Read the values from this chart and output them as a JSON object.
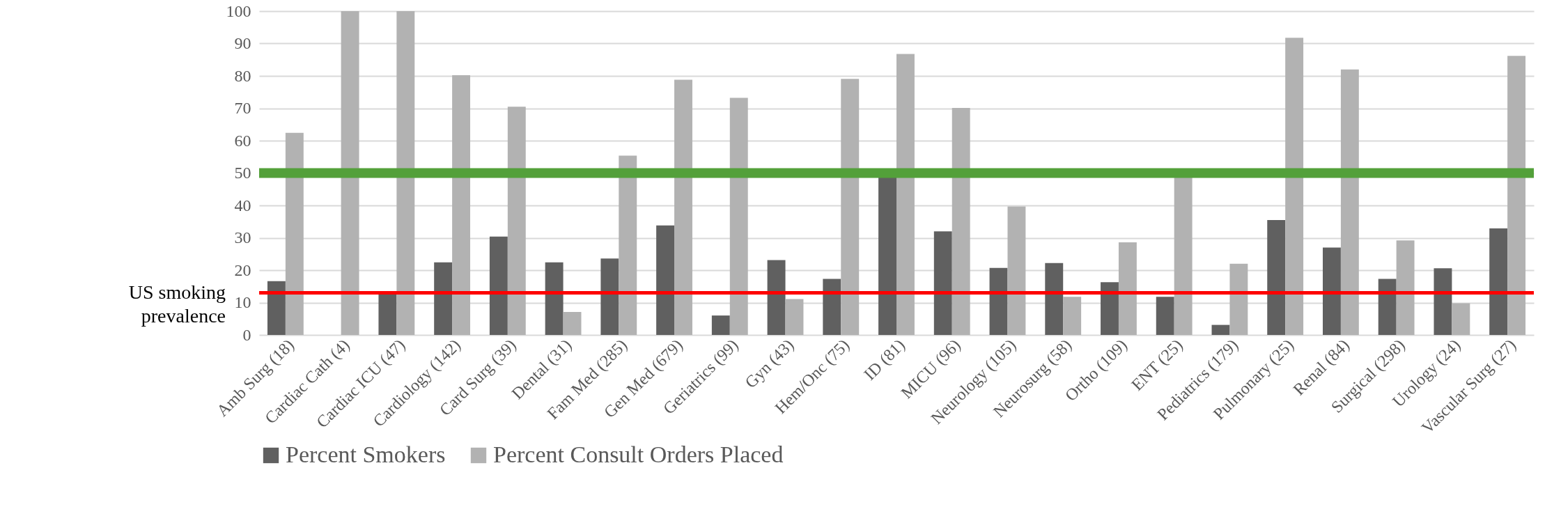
{
  "chart_data": {
    "type": "bar",
    "categories": [
      "Amb Surg (18)",
      "Cardiac Cath (4)",
      "Cardiac ICU (47)",
      "Cardiology (142)",
      "Card Surg (39)",
      "Dental (31)",
      "Fam Med (285)",
      "Gen Med (679)",
      "Geriatrics (99)",
      "Gyn (43)",
      "Hem/Onc (75)",
      "ID (81)",
      "MICU (96)",
      "Neurology (105)",
      "Neurosurg (58)",
      "Ortho (109)",
      "ENT (25)",
      "Pediatrics (179)",
      "Pulmonary (25)",
      "Renal (84)",
      "Surgical (298)",
      "Urology (24)",
      "Vascular Surg (27)"
    ],
    "series": [
      {
        "name": "Percent Smokers",
        "color": "#606060",
        "values": [
          16.6,
          0,
          13.2,
          22.4,
          30.4,
          22.4,
          23.6,
          33.8,
          6.0,
          23.1,
          17.3,
          49,
          32.0,
          20.7,
          22.2,
          16.3,
          11.8,
          3.1,
          35.5,
          27.0,
          17.3,
          20.6,
          32.9
        ]
      },
      {
        "name": "Percent Consult Orders Placed",
        "color": "#b2b2b2",
        "values": [
          62.4,
          100,
          100,
          80.2,
          70.5,
          7.1,
          55.4,
          78.8,
          73.2,
          11.1,
          79.1,
          86.8,
          70.1,
          39.7,
          11.8,
          28.6,
          49,
          22.0,
          91.8,
          82.0,
          29.2,
          9.8,
          86.2
        ]
      }
    ],
    "ylim": [
      0,
      100
    ],
    "yticks": [
      0,
      10,
      20,
      30,
      40,
      50,
      60,
      70,
      80,
      90,
      100
    ],
    "grid": "y",
    "legend": "bottom",
    "ref_lines": [
      {
        "axis": "y",
        "value": 50,
        "color": "#53a03a"
      },
      {
        "axis": "y",
        "value": 13,
        "color": "#ff0000",
        "label": "US smoking prevalence"
      }
    ]
  }
}
